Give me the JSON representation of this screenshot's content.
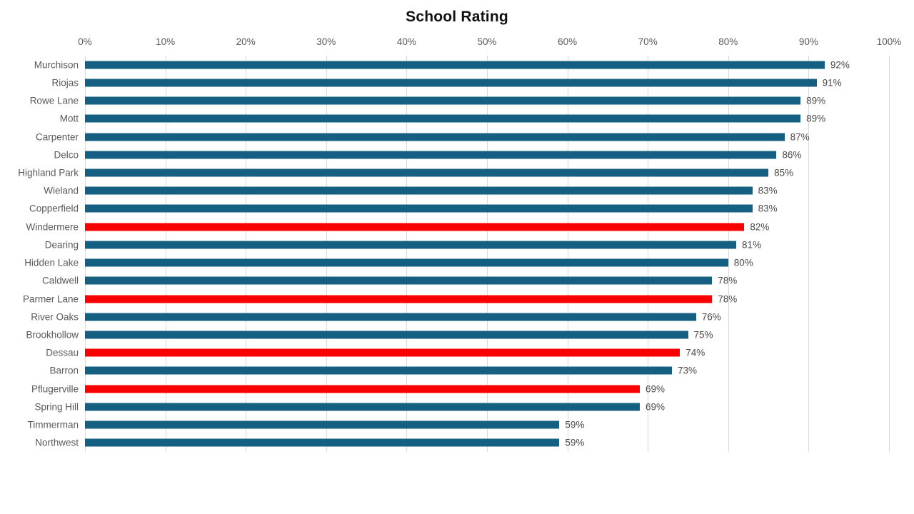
{
  "chart_data": {
    "type": "bar",
    "orientation": "horizontal",
    "title": "School Rating",
    "categories": [
      "Murchison",
      "Riojas",
      "Rowe Lane",
      "Mott",
      "Carpenter",
      "Delco",
      "Highland Park",
      "Wieland",
      "Copperfield",
      "Windermere",
      "Dearing",
      "Hidden Lake",
      "Caldwell",
      "Parmer Lane",
      "River Oaks",
      "Brookhollow",
      "Dessau",
      "Barron",
      "Pflugerville",
      "Spring Hill",
      "Timmerman",
      "Northwest"
    ],
    "values": [
      92,
      91,
      89,
      89,
      87,
      86,
      85,
      83,
      83,
      82,
      81,
      80,
      78,
      78,
      76,
      75,
      74,
      73,
      69,
      69,
      59,
      59
    ],
    "value_labels": [
      "92%",
      "91%",
      "89%",
      "89%",
      "87%",
      "86%",
      "85%",
      "83%",
      "83%",
      "82%",
      "81%",
      "80%",
      "78%",
      "78%",
      "76%",
      "75%",
      "74%",
      "73%",
      "69%",
      "69%",
      "59%",
      "59%"
    ],
    "highlighted_categories": [
      "Windermere",
      "Parmer Lane",
      "Dessau",
      "Pflugerville"
    ],
    "colors": {
      "bar_default": "#156082",
      "bar_highlight": "#fb0000",
      "gridline": "#d9d9d9",
      "axis_label": "#595959",
      "category_label": "#595959",
      "value_label": "#4a4a4a",
      "title": "#111111"
    },
    "x_axis": {
      "position": "top",
      "min": 0,
      "max": 100,
      "tick_step": 10,
      "ticks": [
        "0%",
        "10%",
        "20%",
        "30%",
        "40%",
        "50%",
        "60%",
        "70%",
        "80%",
        "90%",
        "100%"
      ]
    },
    "grid": true,
    "legend": false
  }
}
